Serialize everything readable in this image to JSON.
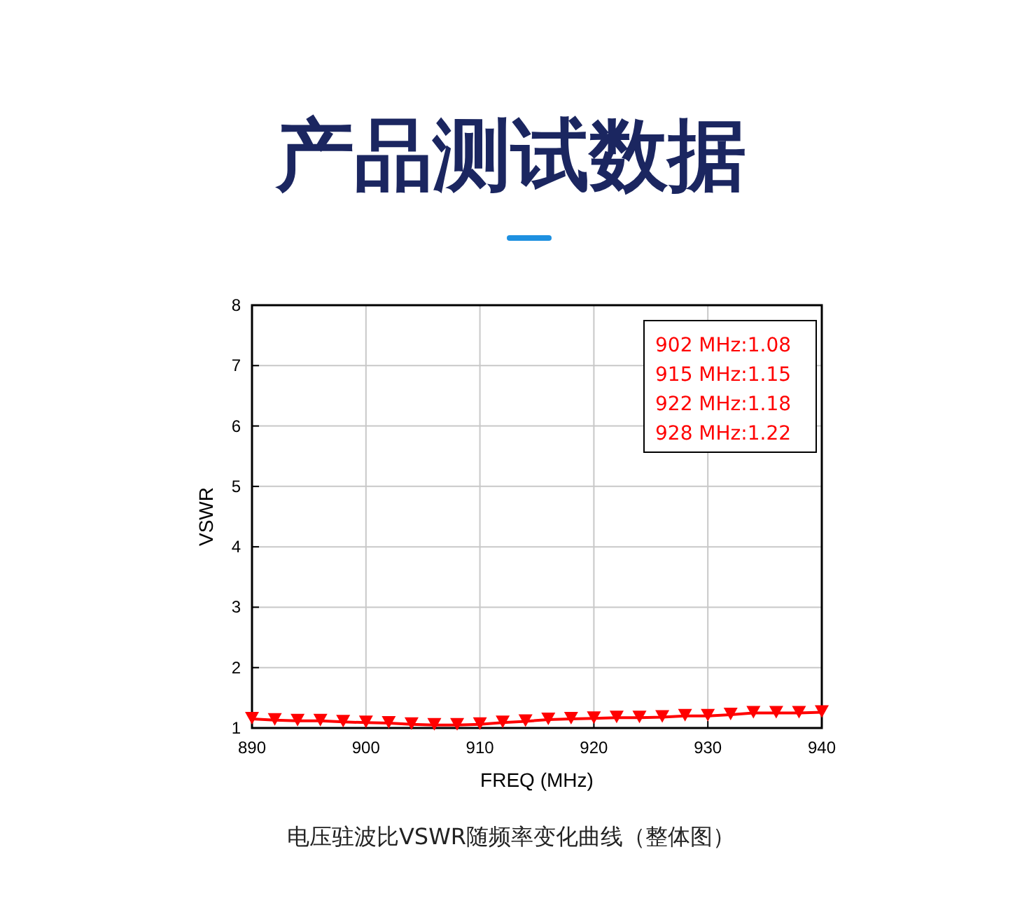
{
  "chart_data": {
    "type": "line",
    "title": "产品测试数据",
    "xlabel": "FREQ (MHz)",
    "ylabel": "VSWR",
    "x": [
      890,
      892,
      894,
      896,
      898,
      900,
      902,
      904,
      906,
      908,
      910,
      912,
      914,
      916,
      918,
      920,
      922,
      924,
      926,
      928,
      930,
      932,
      934,
      936,
      938,
      940
    ],
    "series": [
      {
        "color": "#ff0000",
        "values": [
          1.15,
          1.13,
          1.12,
          1.12,
          1.1,
          1.09,
          1.08,
          1.06,
          1.05,
          1.05,
          1.06,
          1.09,
          1.11,
          1.14,
          1.15,
          1.16,
          1.17,
          1.17,
          1.18,
          1.2,
          1.2,
          1.22,
          1.25,
          1.25,
          1.25,
          1.26
        ]
      }
    ],
    "xlim": [
      890,
      940
    ],
    "xticks": [
      890,
      900,
      910,
      920,
      930,
      940
    ],
    "ylim": [
      1,
      8
    ],
    "yticks": [
      1,
      2,
      3,
      4,
      5,
      6,
      7,
      8
    ],
    "grid": true,
    "marker": "triangle",
    "line_style": "solid",
    "annotations": [
      "902 MHz:1.08",
      "915 MHz:1.15",
      "922 MHz:1.18",
      "928 MHz:1.22",
      "电压驻波比VSWR随频率变化曲线（整体图）"
    ]
  }
}
